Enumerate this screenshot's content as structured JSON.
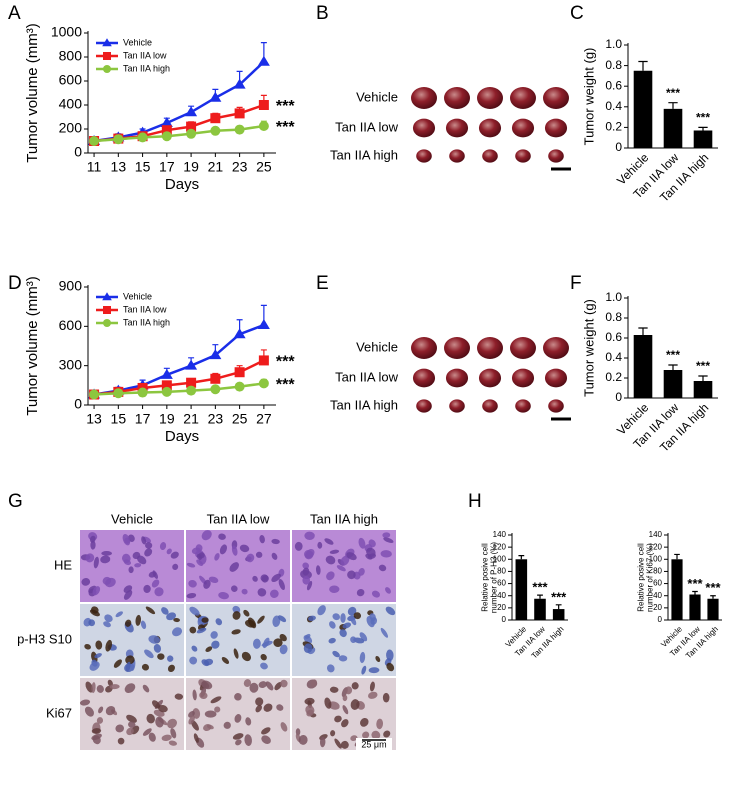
{
  "chart_data": [
    {
      "type": "line",
      "panel": "A",
      "x_label": "Days",
      "y_label": "Tumor volume (mm³)",
      "legend": "upper left",
      "x": [
        11,
        13,
        15,
        17,
        19,
        21,
        23,
        25
      ],
      "xlim": [
        10.5,
        26
      ],
      "xticks": [
        11,
        13,
        15,
        17,
        19,
        21,
        23,
        25
      ],
      "ylim": [
        0,
        1000
      ],
      "yticks": [
        0,
        200,
        400,
        600,
        800,
        1000
      ],
      "series": [
        {
          "name": "Vehicle",
          "color": "#1a2ee8",
          "marker": "triangle",
          "values": [
            100,
            130,
            170,
            250,
            340,
            460,
            570,
            760
          ],
          "errors": [
            20,
            30,
            30,
            40,
            50,
            70,
            110,
            160
          ]
        },
        {
          "name": "Tan IIA low",
          "color": "#ee1c1c",
          "marker": "square",
          "values": [
            100,
            120,
            140,
            190,
            220,
            290,
            330,
            400
          ],
          "errors": [
            15,
            20,
            20,
            30,
            40,
            40,
            50,
            80
          ]
        },
        {
          "name": "Tan IIA high",
          "color": "#8cc63f",
          "marker": "circle",
          "values": [
            100,
            115,
            130,
            140,
            160,
            185,
            195,
            225
          ],
          "errors": [
            10,
            10,
            15,
            15,
            20,
            20,
            30,
            40
          ]
        }
      ],
      "annotations": [
        "***",
        "***"
      ]
    },
    {
      "type": "bar",
      "panel": "C",
      "y_label": "Tumor weight (g)",
      "color": "#000000",
      "categories": [
        "Vehicle",
        "Tan IIA low",
        "Tan IIA high"
      ],
      "values": [
        0.75,
        0.38,
        0.17
      ],
      "errors": [
        0.09,
        0.06,
        0.03
      ],
      "ylim": [
        0,
        1
      ],
      "yticks": [
        0,
        0.2,
        0.4,
        0.6,
        0.8,
        {
          "value": 1,
          "label": "1.0"
        }
      ],
      "annotations": [
        "***",
        "***"
      ]
    },
    {
      "type": "line",
      "panel": "D",
      "x_label": "Days",
      "y_label": "Tumor volume (mm³)",
      "legend": "upper left",
      "x": [
        13,
        15,
        17,
        19,
        21,
        23,
        25,
        27
      ],
      "xlim": [
        12.5,
        28
      ],
      "xticks": [
        13,
        15,
        17,
        19,
        21,
        23,
        25,
        27
      ],
      "ylim": [
        0,
        900
      ],
      "yticks": [
        0,
        300,
        600,
        900
      ],
      "series": [
        {
          "name": "Vehicle",
          "color": "#1a2ee8",
          "marker": "triangle",
          "values": [
            80,
            110,
            150,
            230,
            300,
            380,
            540,
            610
          ],
          "errors": [
            15,
            25,
            40,
            50,
            60,
            80,
            110,
            150
          ]
        },
        {
          "name": "Tan IIA low",
          "color": "#ee1c1c",
          "marker": "square",
          "values": [
            80,
            100,
            130,
            150,
            170,
            200,
            250,
            340
          ],
          "errors": [
            10,
            20,
            30,
            30,
            30,
            40,
            50,
            80
          ]
        },
        {
          "name": "Tan IIA high",
          "color": "#8cc63f",
          "marker": "circle",
          "values": [
            80,
            90,
            95,
            100,
            110,
            120,
            140,
            165
          ],
          "errors": [
            10,
            10,
            15,
            15,
            15,
            20,
            20,
            30
          ]
        }
      ],
      "annotations": [
        "***",
        "***"
      ]
    },
    {
      "type": "bar",
      "panel": "F",
      "y_label": "Tumor weight (g)",
      "color": "#000000",
      "categories": [
        "Vehicle",
        "Tan IIA low",
        "Tan IIA high"
      ],
      "values": [
        0.63,
        0.28,
        0.17
      ],
      "errors": [
        0.07,
        0.05,
        0.05
      ],
      "ylim": [
        0,
        1
      ],
      "yticks": [
        0,
        0.2,
        0.4,
        0.6,
        0.8,
        {
          "value": 1,
          "label": "1.0"
        }
      ],
      "annotations": [
        "***",
        "***"
      ]
    },
    {
      "type": "bar",
      "panel": "H",
      "y_label": [
        "Relative posive cell",
        "number of P-H3 (%)"
      ],
      "color": "#000000",
      "categories": [
        "Vehicle",
        "Tan IIA low",
        "Tan IIA high"
      ],
      "values": [
        100,
        35,
        18
      ],
      "errors": [
        6,
        6,
        7
      ],
      "ylim": [
        0,
        140
      ],
      "yticks": [
        0,
        20,
        40,
        60,
        80,
        100,
        120,
        140
      ],
      "annotations": [
        "***",
        "***"
      ]
    },
    {
      "type": "bar",
      "y_label": [
        "Relative posive cell",
        "number of Ki67 (%)"
      ],
      "color": "#000000",
      "categories": [
        "Vehicle",
        "Tan IIA low",
        "Tan IIA high"
      ],
      "values": [
        100,
        42,
        35
      ],
      "errors": [
        8,
        5,
        5
      ],
      "ylim": [
        0,
        140
      ],
      "yticks": [
        0,
        20,
        40,
        60,
        80,
        100,
        120,
        140
      ],
      "annotations": [
        "***",
        "***"
      ]
    }
  ],
  "photos": [
    {
      "panel": "B",
      "rows": [
        "Vehicle",
        "Tan IIA low",
        "Tan IIA high"
      ]
    },
    {
      "panel": "E",
      "rows": [
        "Vehicle",
        "Tan IIA low",
        "Tan IIA high"
      ]
    }
  ],
  "histology": {
    "panel": "G",
    "columns": [
      "Vehicle",
      "Tan IIA low",
      "Tan IIA high"
    ],
    "rows": [
      "HE",
      "p-H3 S10",
      "Ki67"
    ],
    "scale_bar": "25 μm"
  }
}
